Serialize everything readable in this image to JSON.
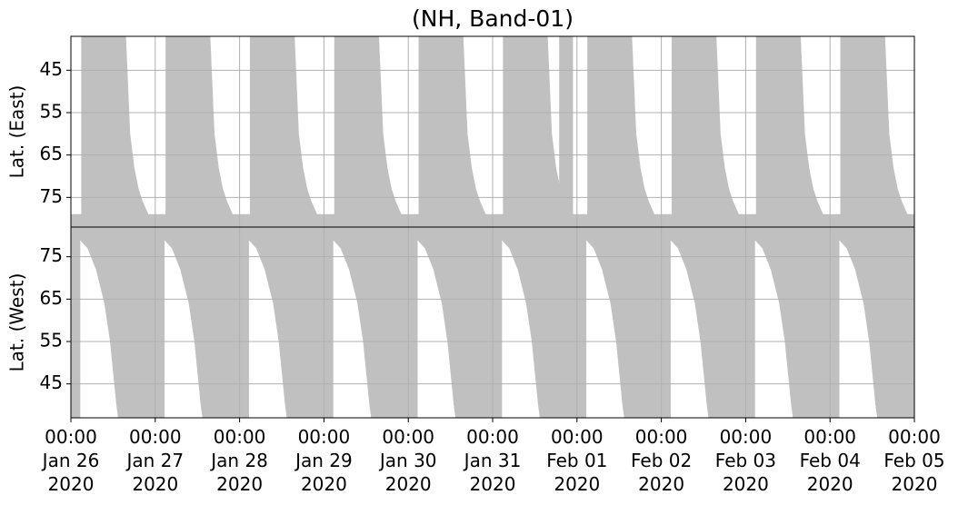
{
  "chart_data": [
    {
      "type": "area",
      "title": "(NH, Band-01)",
      "ylabel": "Lat. (East)",
      "ylim": [
        82,
        37
      ],
      "yticks": [
        45,
        55,
        65,
        75
      ],
      "grid": true,
      "color": "#c0c0c0",
      "x": [
        "2020-01-26 00:00",
        "2020-01-26 03:00",
        "2020-01-26 03:00",
        "2020-01-26 15:36",
        "2020-01-26 16:48",
        "2020-01-26 18:00",
        "2020-01-26 19:12",
        "2020-01-26 20:24",
        "2020-01-26 22:00",
        "2020-01-27 03:00",
        "2020-01-27 03:00",
        "2020-01-27 15:36",
        "2020-01-27 16:48",
        "2020-01-27 18:00",
        "2020-01-27 19:12",
        "2020-01-27 20:24",
        "2020-01-27 22:00",
        "2020-01-28 03:00",
        "2020-01-28 03:00",
        "2020-01-28 15:36",
        "2020-01-28 16:48",
        "2020-01-28 18:00",
        "2020-01-28 19:12",
        "2020-01-28 20:24",
        "2020-01-28 22:00",
        "2020-01-29 03:00",
        "2020-01-29 03:00",
        "2020-01-29 15:36",
        "2020-01-29 16:48",
        "2020-01-29 18:00",
        "2020-01-29 19:12",
        "2020-01-29 20:24",
        "2020-01-29 22:00",
        "2020-01-30 03:00",
        "2020-01-30 03:00",
        "2020-01-30 15:36",
        "2020-01-30 16:48",
        "2020-01-30 18:00",
        "2020-01-30 19:12",
        "2020-01-30 20:24",
        "2020-01-30 22:00",
        "2020-01-31 03:00",
        "2020-01-31 03:00",
        "2020-01-31 15:36",
        "2020-01-31 16:48",
        "2020-01-31 18:00",
        "2020-01-31 19:00",
        "2020-01-31 19:00",
        "2020-01-31 22:48",
        "2020-01-31 22:48",
        "2020-02-01 03:00",
        "2020-02-01 03:00",
        "2020-02-01 15:36",
        "2020-02-01 16:48",
        "2020-02-01 18:00",
        "2020-02-01 19:12",
        "2020-02-01 20:24",
        "2020-02-01 22:00",
        "2020-02-02 03:00",
        "2020-02-02 03:00",
        "2020-02-02 15:36",
        "2020-02-02 16:48",
        "2020-02-02 18:00",
        "2020-02-02 19:12",
        "2020-02-02 20:24",
        "2020-02-02 22:00",
        "2020-02-03 03:00",
        "2020-02-03 03:00",
        "2020-02-03 15:36",
        "2020-02-03 16:48",
        "2020-02-03 18:00",
        "2020-02-03 19:12",
        "2020-02-03 20:24",
        "2020-02-03 22:00",
        "2020-02-04 03:00",
        "2020-02-04 03:00",
        "2020-02-04 15:36",
        "2020-02-04 16:48",
        "2020-02-04 18:00",
        "2020-02-04 19:12",
        "2020-02-04 20:24",
        "2020-02-04 22:00",
        "2020-02-05 00:00"
      ],
      "values": [
        79,
        79,
        37,
        37,
        60,
        68,
        73,
        76,
        79,
        79,
        37,
        37,
        60,
        68,
        73,
        76,
        79,
        79,
        37,
        37,
        60,
        68,
        73,
        76,
        79,
        79,
        37,
        37,
        60,
        68,
        73,
        76,
        79,
        79,
        37,
        37,
        60,
        68,
        73,
        76,
        79,
        79,
        37,
        37,
        60,
        68,
        72,
        37,
        37,
        79,
        79,
        37,
        37,
        60,
        68,
        73,
        76,
        79,
        79,
        37,
        37,
        60,
        68,
        73,
        76,
        79,
        79,
        37,
        37,
        60,
        68,
        73,
        76,
        79,
        79,
        37,
        37,
        60,
        68,
        73,
        76,
        79,
        79
      ]
    },
    {
      "type": "area",
      "ylabel": "Lat. (West)",
      "ylim": [
        37,
        82
      ],
      "yticks": [
        45,
        55,
        65,
        75
      ],
      "grid": true,
      "color": "#c0c0c0",
      "xlim": [
        "2020-01-26 00:00",
        "2020-02-05 00:00"
      ],
      "xticks": [
        {
          "value": "2020-01-26 00:00",
          "label": "00:00\nJan 26\n2020"
        },
        {
          "value": "2020-01-27 00:00",
          "label": "00:00\nJan 27\n2020"
        },
        {
          "value": "2020-01-28 00:00",
          "label": "00:00\nJan 28\n2020"
        },
        {
          "value": "2020-01-29 00:00",
          "label": "00:00\nJan 29\n2020"
        },
        {
          "value": "2020-01-30 00:00",
          "label": "00:00\nJan 30\n2020"
        },
        {
          "value": "2020-01-31 00:00",
          "label": "00:00\nJan 31\n2020"
        },
        {
          "value": "2020-02-01 00:00",
          "label": "00:00\nFeb 01\n2020"
        },
        {
          "value": "2020-02-02 00:00",
          "label": "00:00\nFeb 02\n2020"
        },
        {
          "value": "2020-02-03 00:00",
          "label": "00:00\nFeb 03\n2020"
        },
        {
          "value": "2020-02-04 00:00",
          "label": "00:00\nFeb 04\n2020"
        },
        {
          "value": "2020-02-05 00:00",
          "label": "00:00\nFeb 05\n2020"
        }
      ],
      "x": [
        "2020-01-26 00:00",
        "2020-01-26 02:36",
        "2020-01-26 02:36",
        "2020-01-26 04:48",
        "2020-01-26 07:12",
        "2020-01-26 09:36",
        "2020-01-26 11:12",
        "2020-01-26 13:00",
        "2020-01-26 13:30",
        "2020-01-27 02:36",
        "2020-01-27 02:36",
        "2020-01-27 04:48",
        "2020-01-27 07:12",
        "2020-01-27 09:36",
        "2020-01-27 11:12",
        "2020-01-27 13:00",
        "2020-01-27 13:30",
        "2020-01-28 02:36",
        "2020-01-28 02:36",
        "2020-01-28 04:48",
        "2020-01-28 07:12",
        "2020-01-28 09:36",
        "2020-01-28 11:12",
        "2020-01-28 13:00",
        "2020-01-28 13:30",
        "2020-01-29 02:36",
        "2020-01-29 02:36",
        "2020-01-29 04:48",
        "2020-01-29 07:12",
        "2020-01-29 09:36",
        "2020-01-29 11:12",
        "2020-01-29 13:00",
        "2020-01-29 13:30",
        "2020-01-30 02:36",
        "2020-01-30 02:36",
        "2020-01-30 04:48",
        "2020-01-30 07:12",
        "2020-01-30 09:36",
        "2020-01-30 11:12",
        "2020-01-30 13:00",
        "2020-01-30 13:30",
        "2020-01-31 02:36",
        "2020-01-31 02:36",
        "2020-01-31 04:48",
        "2020-01-31 07:12",
        "2020-01-31 09:36",
        "2020-01-31 11:12",
        "2020-01-31 13:00",
        "2020-01-31 13:30",
        "2020-02-01 02:36",
        "2020-02-01 02:36",
        "2020-02-01 04:48",
        "2020-02-01 07:12",
        "2020-02-01 09:36",
        "2020-02-01 11:12",
        "2020-02-01 13:00",
        "2020-02-01 13:30",
        "2020-02-02 02:36",
        "2020-02-02 02:36",
        "2020-02-02 04:48",
        "2020-02-02 07:12",
        "2020-02-02 09:36",
        "2020-02-02 11:12",
        "2020-02-02 13:00",
        "2020-02-02 13:30",
        "2020-02-03 02:36",
        "2020-02-03 02:36",
        "2020-02-03 04:48",
        "2020-02-03 07:12",
        "2020-02-03 09:36",
        "2020-02-03 11:12",
        "2020-02-03 13:00",
        "2020-02-03 13:30",
        "2020-02-04 02:36",
        "2020-02-04 02:36",
        "2020-02-04 04:48",
        "2020-02-04 07:12",
        "2020-02-04 09:36",
        "2020-02-04 11:12",
        "2020-02-04 13:00",
        "2020-02-04 13:30",
        "2020-02-05 00:00"
      ],
      "values": [
        37,
        37,
        79,
        77,
        72,
        64,
        55,
        40,
        37,
        37,
        79,
        77,
        72,
        64,
        55,
        40,
        37,
        37,
        79,
        77,
        72,
        64,
        55,
        40,
        37,
        37,
        79,
        77,
        72,
        64,
        55,
        40,
        37,
        37,
        79,
        77,
        72,
        64,
        55,
        40,
        37,
        37,
        79,
        77,
        72,
        64,
        55,
        40,
        37,
        37,
        79,
        77,
        72,
        64,
        55,
        40,
        37,
        37,
        79,
        77,
        72,
        64,
        55,
        40,
        37,
        37,
        79,
        77,
        72,
        64,
        55,
        40,
        37,
        37,
        79,
        77,
        72,
        64,
        55,
        40,
        37,
        37
      ]
    }
  ]
}
